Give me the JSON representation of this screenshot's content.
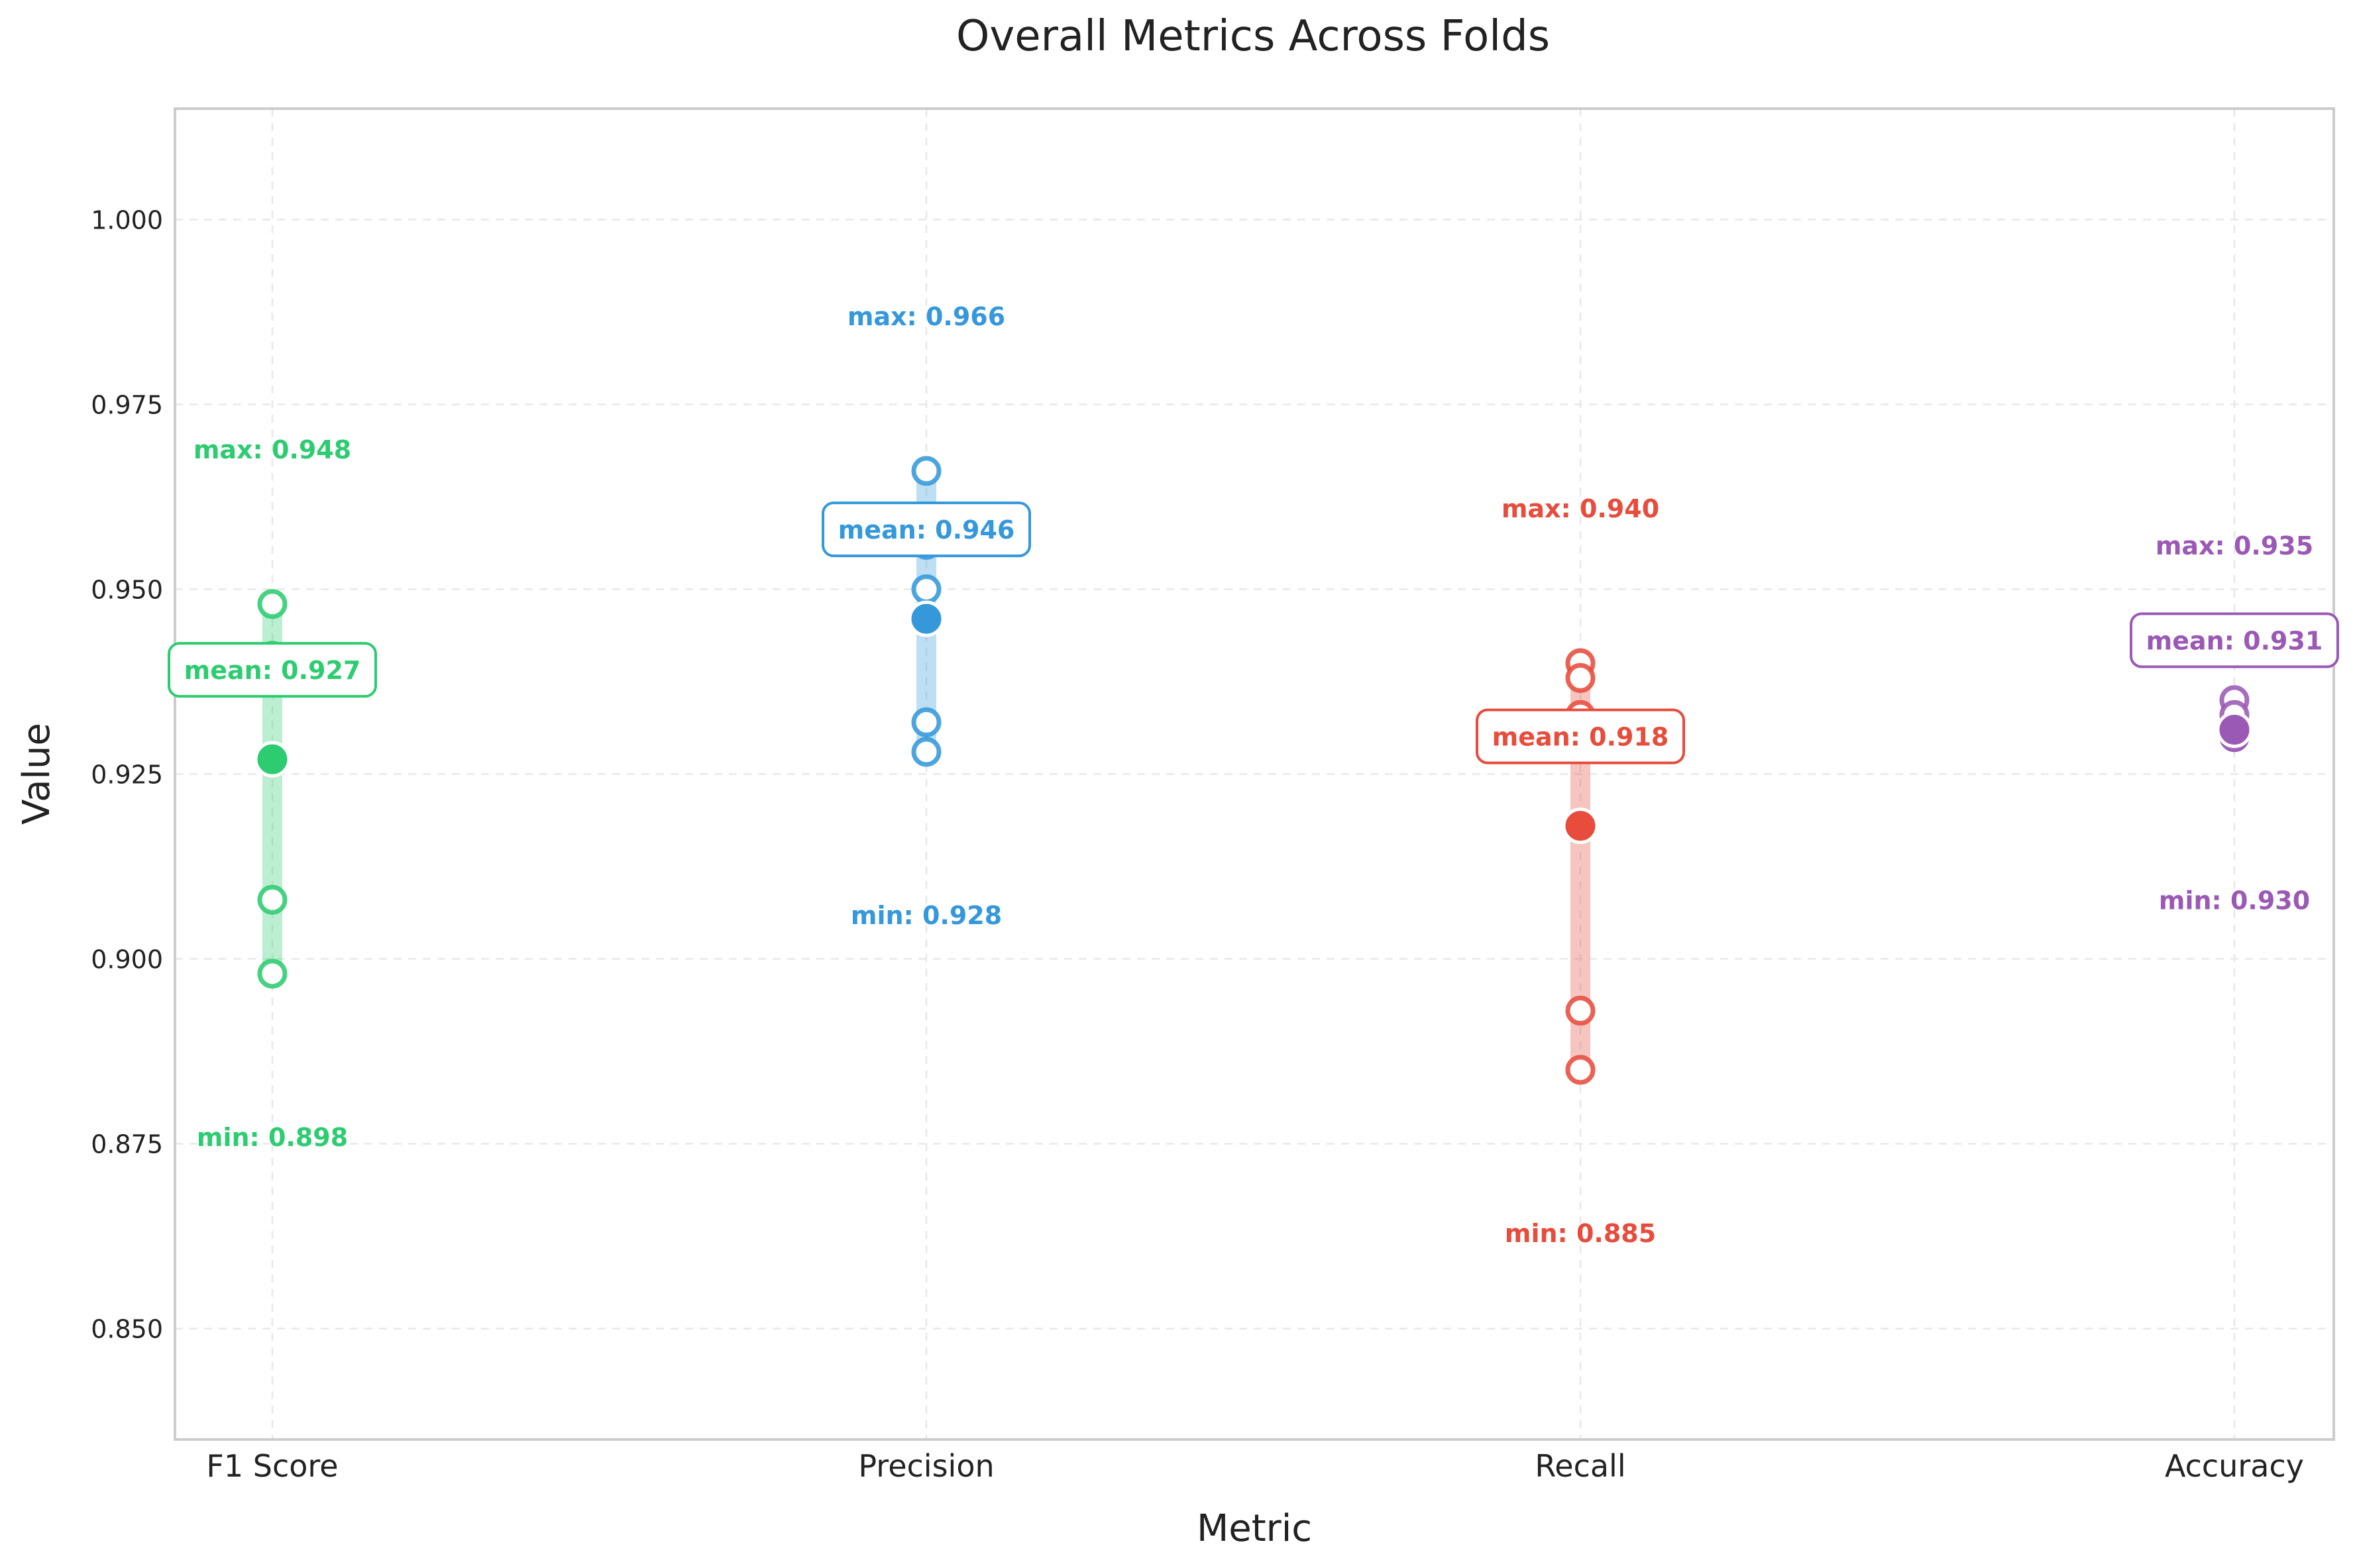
{
  "chart_data": {
    "type": "scatter",
    "title": "Overall Metrics Across Folds",
    "xlabel": "Metric",
    "ylabel": "Value",
    "ylim": [
      0.835,
      1.015
    ],
    "yticks": [
      "0.850",
      "0.875",
      "0.900",
      "0.925",
      "0.950",
      "0.975",
      "1.000"
    ],
    "grid": true,
    "categories": [
      "F1 Score",
      "Precision",
      "Recall",
      "Accuracy"
    ],
    "series": [
      {
        "category": "F1 Score",
        "color": "#2ecc71",
        "folds": [
          0.948,
          0.941,
          0.927,
          0.908,
          0.898
        ],
        "mean": 0.927,
        "min": 0.898,
        "max": 0.948,
        "mean_label": "mean: 0.927",
        "min_label": "min: 0.898",
        "max_label": "max: 0.948"
      },
      {
        "category": "Precision",
        "color": "#3498db",
        "folds": [
          0.966,
          0.956,
          0.95,
          0.932,
          0.928
        ],
        "mean": 0.946,
        "min": 0.928,
        "max": 0.966,
        "mean_label": "mean: 0.946",
        "min_label": "min: 0.928",
        "max_label": "max: 0.966"
      },
      {
        "category": "Recall",
        "color": "#e74c3c",
        "folds": [
          0.94,
          0.938,
          0.933,
          0.893,
          0.885
        ],
        "mean": 0.918,
        "min": 0.885,
        "max": 0.94,
        "mean_label": "mean: 0.918",
        "min_label": "min: 0.885",
        "max_label": "max: 0.940"
      },
      {
        "category": "Accuracy",
        "color": "#9b59b6",
        "folds": [
          0.935,
          0.933,
          0.931,
          0.93,
          0.93
        ],
        "mean": 0.931,
        "min": 0.93,
        "max": 0.935,
        "mean_label": "mean: 0.931",
        "min_label": "min: 0.930",
        "max_label": "max: 0.935"
      }
    ]
  }
}
